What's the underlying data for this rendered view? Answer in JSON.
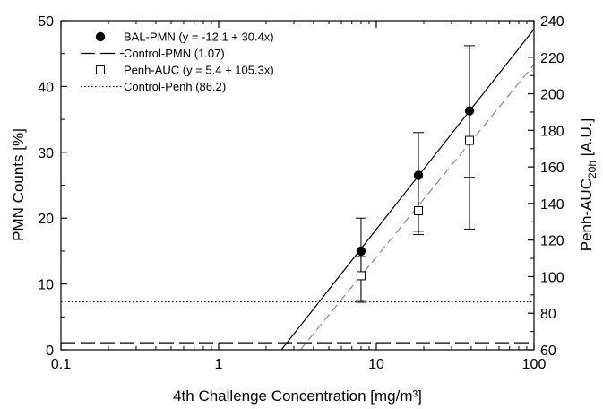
{
  "chart_data": {
    "type": "scatter",
    "x_axis": {
      "label": "4th Challenge Concentration [mg/m³]",
      "scale": "log",
      "range": [
        0.1,
        100
      ],
      "ticks": [
        0.1,
        1,
        10,
        100
      ],
      "tick_labels": [
        "0.1",
        "1",
        "10",
        "100"
      ]
    },
    "y_left": {
      "label": "PMN Counts [%]",
      "range": [
        0,
        50
      ],
      "ticks": [
        0,
        10,
        20,
        30,
        40,
        50
      ],
      "tick_labels": [
        "0",
        "10",
        "20",
        "30",
        "40",
        "50"
      ]
    },
    "y_right": {
      "label_main": "Penh-AUC",
      "label_sub": "20h",
      "label_tail": " [A.U.]",
      "range": [
        60,
        240
      ],
      "ticks": [
        60,
        80,
        100,
        120,
        140,
        160,
        180,
        200,
        220,
        240
      ],
      "tick_labels": [
        "60",
        "80",
        "100",
        "120",
        "140",
        "160",
        "180",
        "200",
        "220",
        "240"
      ]
    },
    "series": [
      {
        "name": "BAL-PMN (y = -12.1 + 30.4x)",
        "axis": "left",
        "marker": "filled-circle",
        "points": [
          {
            "x": 8,
            "y": 15,
            "err_low": 7.5,
            "err_high": 20
          },
          {
            "x": 18.5,
            "y": 26.5,
            "err_low": 18,
            "err_high": 33
          },
          {
            "x": 39,
            "y": 36.3,
            "err_low": 26.2,
            "err_high": 46.2
          }
        ],
        "fit": {
          "intercept": -12.1,
          "slope": 30.4,
          "style": "solid",
          "color": "#000000"
        }
      },
      {
        "name": "Control-PMN (1.07)",
        "axis": "left",
        "constant": 1.07,
        "style": "long-dash",
        "color": "#000000"
      },
      {
        "name": "Penh-AUC (y = 5.4 + 105.3x)",
        "axis": "right",
        "marker": "open-square",
        "points": [
          {
            "x": 8,
            "y": 100.5,
            "err_low": 86,
            "err_high": 111
          },
          {
            "x": 18.5,
            "y": 136,
            "err_low": 123,
            "err_high": 149
          },
          {
            "x": 39,
            "y": 174.5,
            "err_low": 126,
            "err_high": 225
          }
        ],
        "fit": {
          "intercept": 5.4,
          "slope": 105.3,
          "style": "dashed",
          "color": "#888888"
        }
      },
      {
        "name": "Control-Penh (86.2)",
        "axis": "right",
        "constant": 86.2,
        "style": "dotted",
        "color": "#000000"
      }
    ],
    "legend_position": "top-left",
    "grid": false
  }
}
